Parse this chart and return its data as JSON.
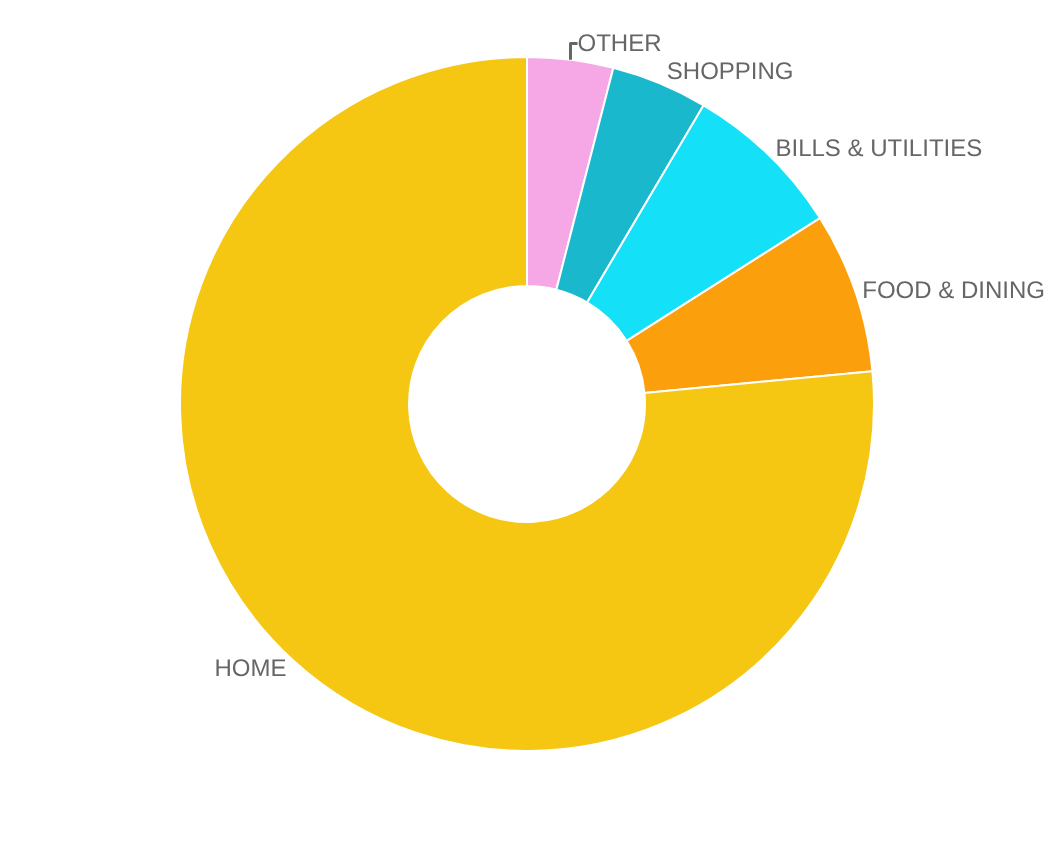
{
  "chart_data": {
    "type": "donut",
    "categories": [
      "OTHER",
      "SHOPPING",
      "BILLS & UTILITIES",
      "FOOD & DINING",
      "HOME"
    ],
    "values": [
      4,
      4.5,
      7.5,
      7.5,
      76.5
    ],
    "colors": [
      "#f6a8e6",
      "#1ab8cc",
      "#14e0f8",
      "#fba00c",
      "#f5c612"
    ],
    "legend": false
  }
}
